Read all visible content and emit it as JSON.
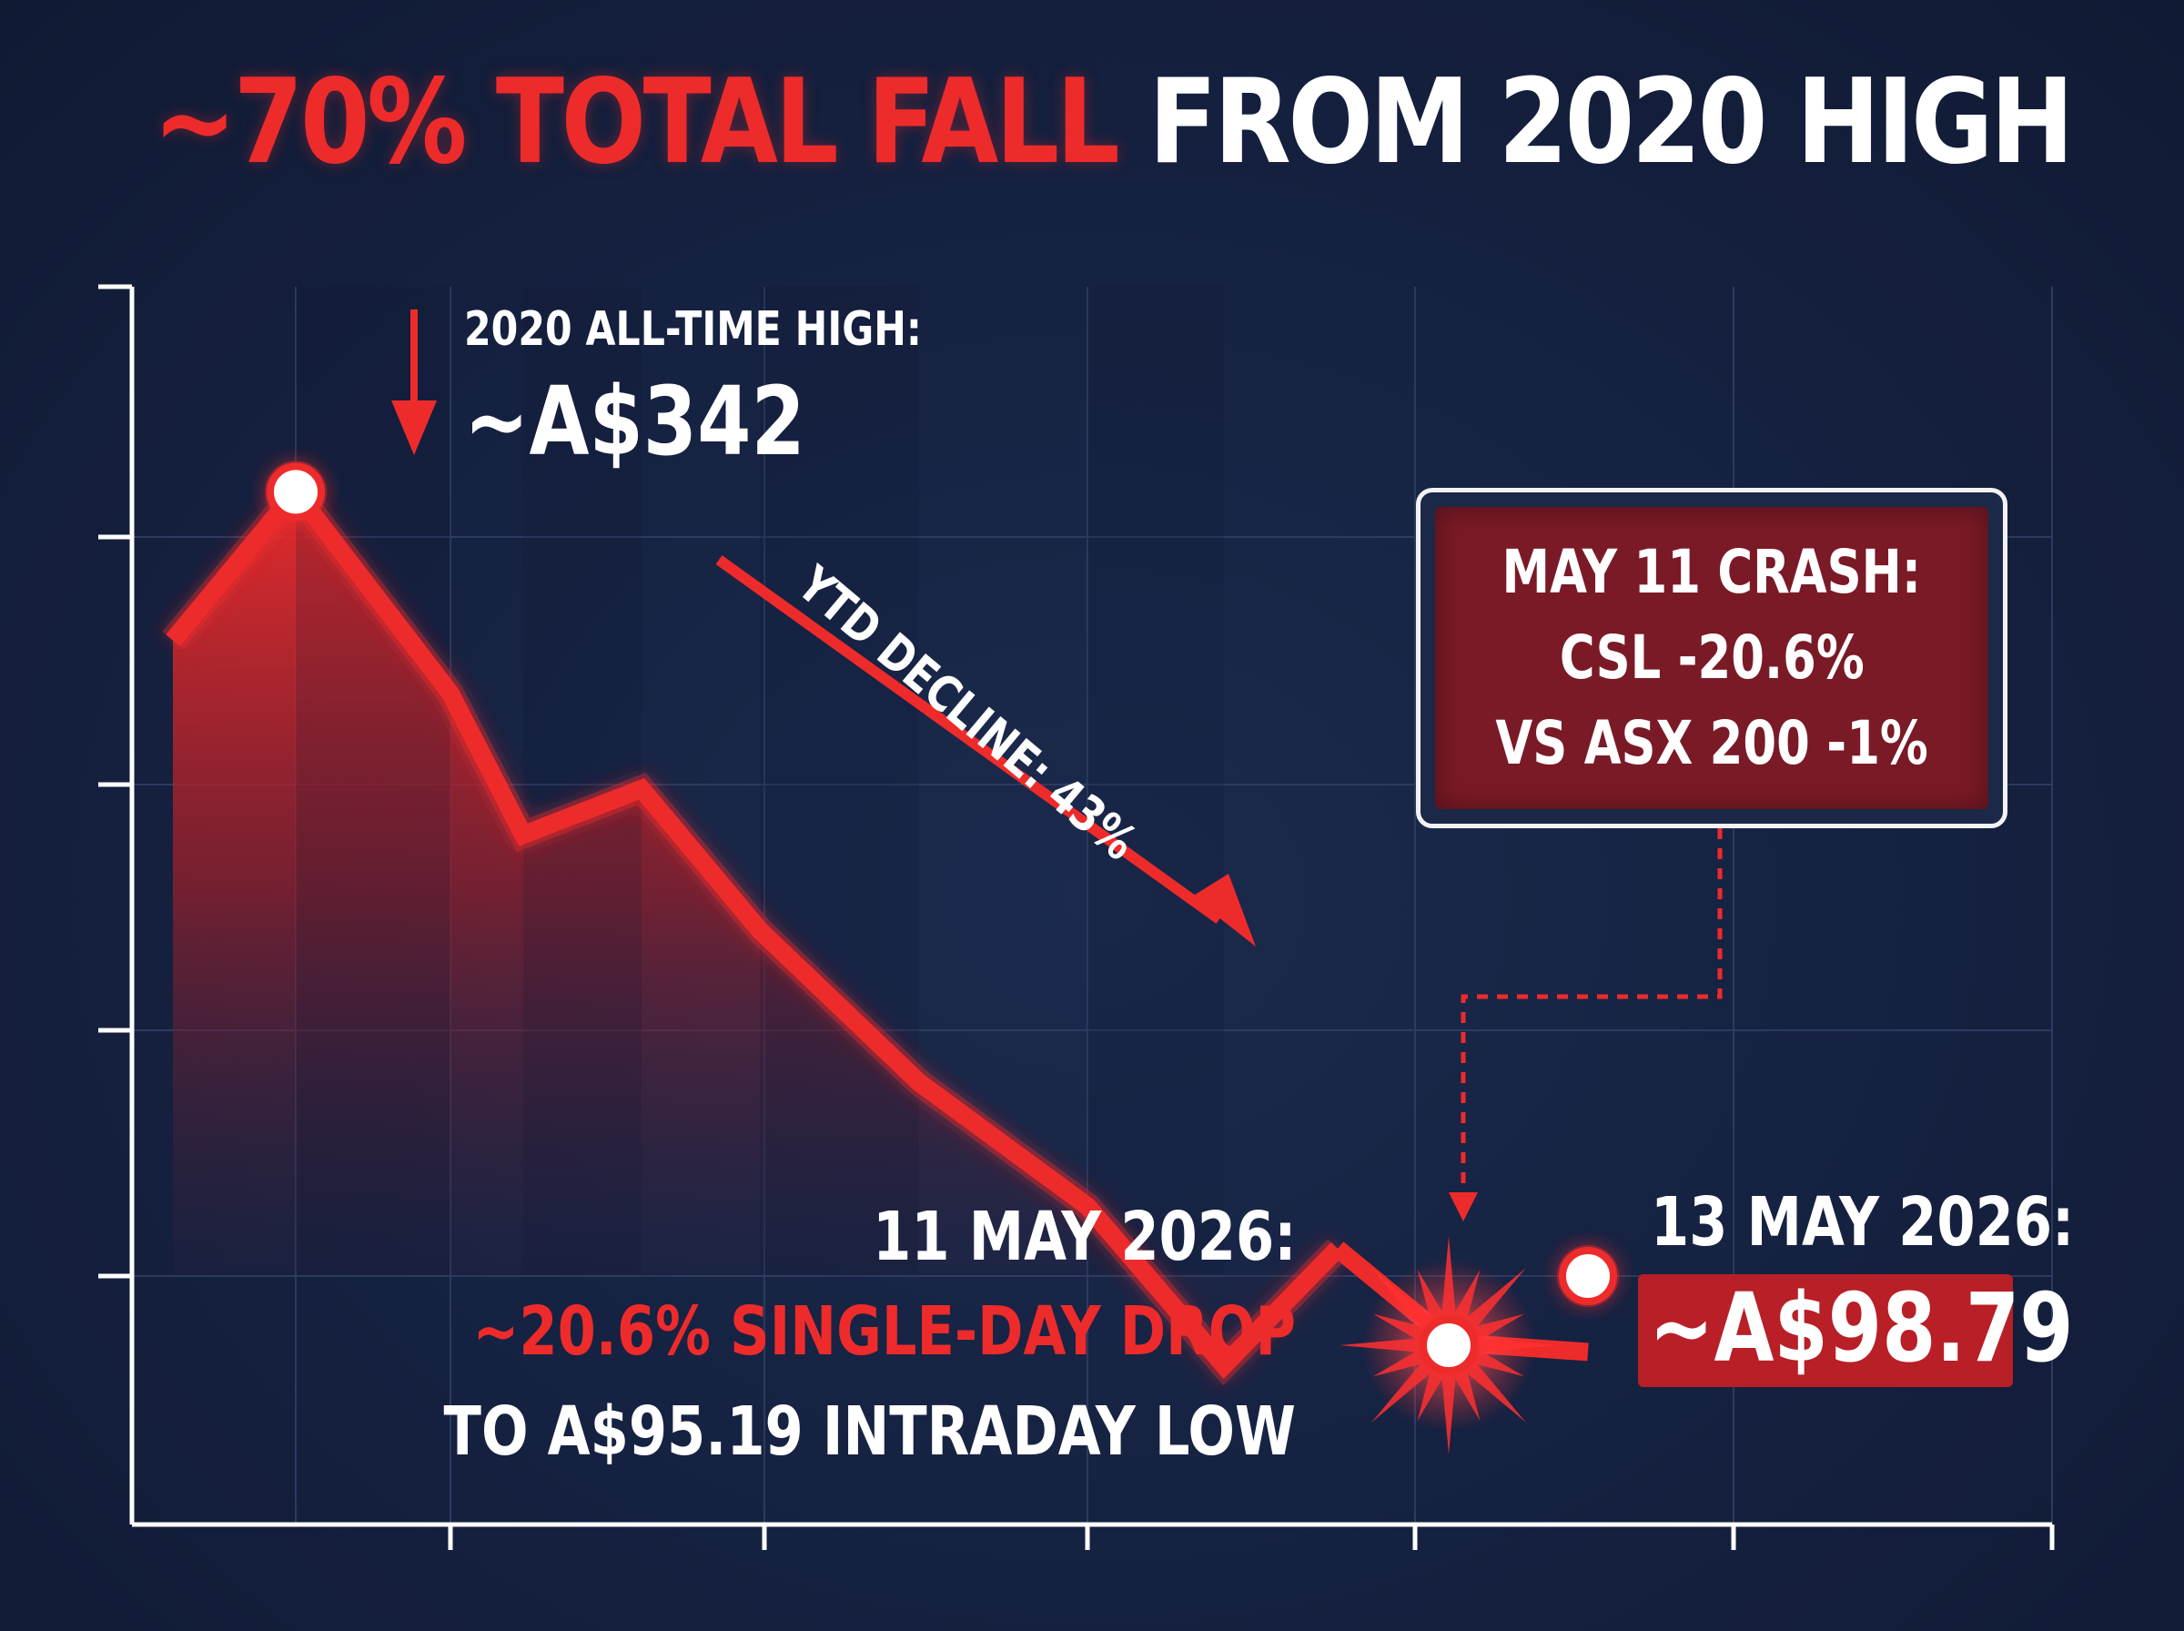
{
  "title": {
    "highlight": "~70% TOTAL FALL",
    "rest": "FROM 2020 HIGH"
  },
  "chart_data": {
    "type": "line",
    "title": "~70% TOTAL FALL FROM 2020 HIGH",
    "xlabel": "",
    "ylabel": "",
    "grid": true,
    "series": [
      {
        "values": [
          300,
          342,
          285,
          245,
          258,
          218,
          175,
          140,
          95,
          128,
          95.19,
          98.79
        ]
      }
    ],
    "colors": {
      "line": "#ee2b2b",
      "marker_fill": "#ffffff",
      "background": "#15213f"
    }
  },
  "annotations": {
    "ath_label": "2020 ALL-TIME HIGH:",
    "ath_value": "~A$342",
    "ytd": "YTD DECLINE: 43%",
    "crash_title": "MAY 11 CRASH:",
    "crash_csl": "CSL -20.6%",
    "crash_asx": "VS ASX 200 -1%",
    "drop_date": "11 MAY 2026:",
    "drop_pct": "~20.6% SINGLE-DAY DROP",
    "drop_low": "TO A$95.19 INTRADAY LOW",
    "end_date": "13 MAY 2026:",
    "end_value": "~A$98.79"
  }
}
